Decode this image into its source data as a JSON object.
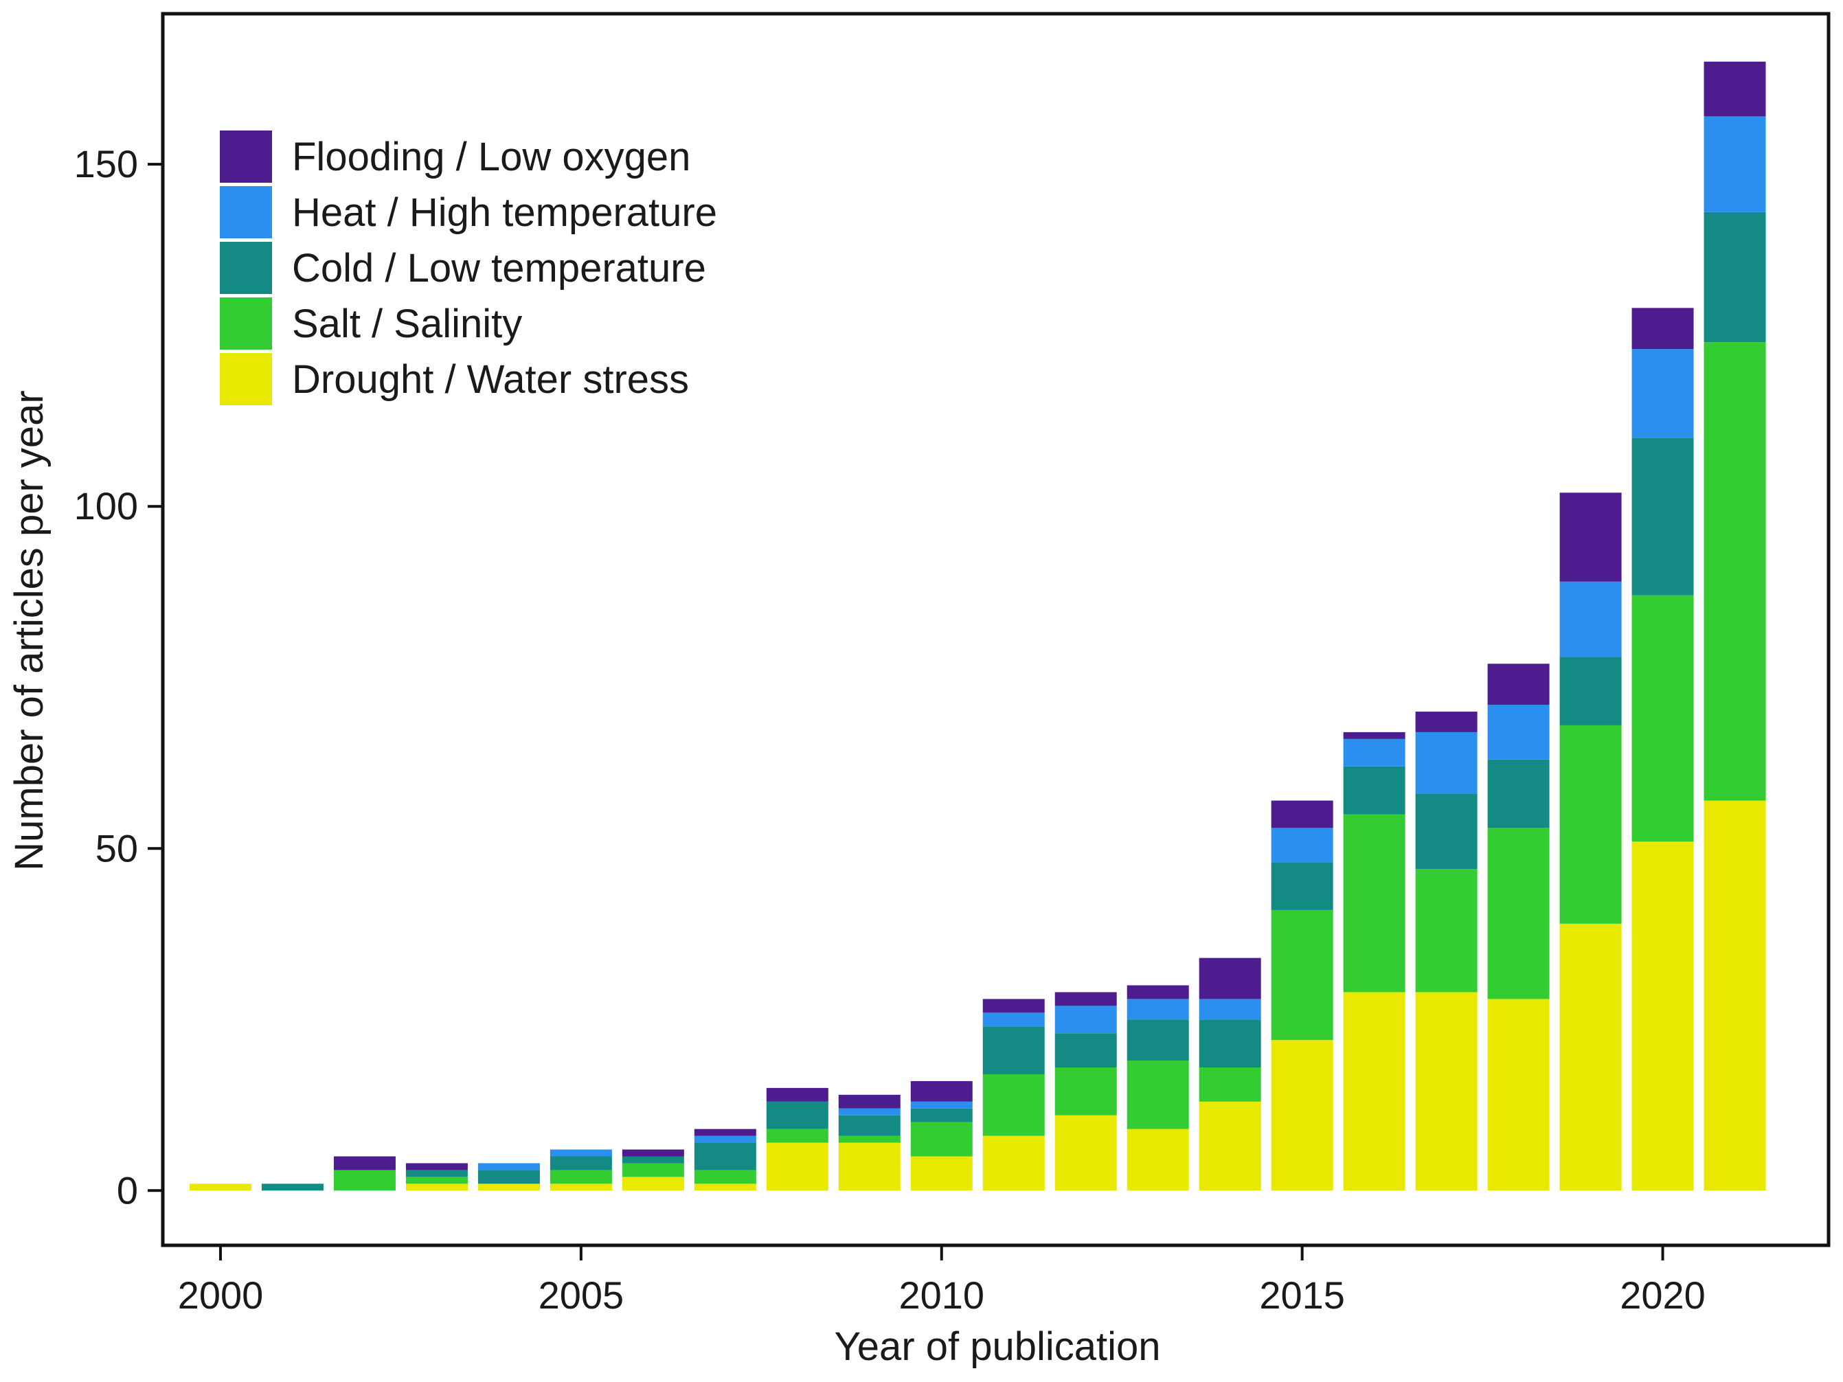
{
  "chart_data": {
    "type": "bar",
    "stacked": true,
    "xlabel": "Year of publication",
    "ylabel": "Number of articles per year",
    "categories": [
      2000,
      2001,
      2002,
      2003,
      2004,
      2005,
      2006,
      2007,
      2008,
      2009,
      2010,
      2011,
      2012,
      2013,
      2014,
      2015,
      2016,
      2017,
      2018,
      2019,
      2020,
      2021
    ],
    "x_ticks": [
      2000,
      2005,
      2010,
      2015,
      2020
    ],
    "y_ticks": [
      0,
      50,
      100,
      150
    ],
    "xlim": [
      1999.2,
      2022.3
    ],
    "ylim": [
      -8,
      172
    ],
    "grid": false,
    "legend_position": "top-left",
    "series": [
      {
        "name": "Drought / Water stress",
        "color": "#e8e800",
        "values": [
          1,
          0,
          0,
          1,
          1,
          1,
          2,
          1,
          7,
          7,
          5,
          8,
          11,
          9,
          13,
          22,
          29,
          29,
          28,
          39,
          51,
          57
        ]
      },
      {
        "name": "Salt / Salinity",
        "color": "#33cc33",
        "values": [
          0,
          0,
          3,
          1,
          0,
          2,
          2,
          2,
          2,
          1,
          5,
          9,
          7,
          10,
          5,
          19,
          26,
          18,
          25,
          29,
          36,
          67
        ]
      },
      {
        "name": "Cold / Low temperature",
        "color": "#138a84",
        "values": [
          0,
          1,
          0,
          1,
          2,
          2,
          1,
          4,
          4,
          3,
          2,
          7,
          5,
          6,
          7,
          7,
          7,
          11,
          10,
          10,
          23,
          19
        ]
      },
      {
        "name": "Heat / High temperature",
        "color": "#2b8ff0",
        "values": [
          0,
          0,
          0,
          0,
          1,
          1,
          0,
          1,
          0,
          1,
          1,
          2,
          4,
          3,
          3,
          5,
          4,
          9,
          8,
          11,
          13,
          14
        ]
      },
      {
        "name": "Flooding / Low oxygen",
        "color": "#4d1d8f",
        "values": [
          0,
          0,
          2,
          1,
          0,
          0,
          1,
          1,
          2,
          2,
          3,
          2,
          2,
          2,
          6,
          4,
          1,
          3,
          6,
          13,
          6,
          8
        ]
      }
    ],
    "legend_order": [
      "Flooding / Low oxygen",
      "Heat / High temperature",
      "Cold / Low temperature",
      "Salt / Salinity",
      "Drought / Water stress"
    ]
  }
}
